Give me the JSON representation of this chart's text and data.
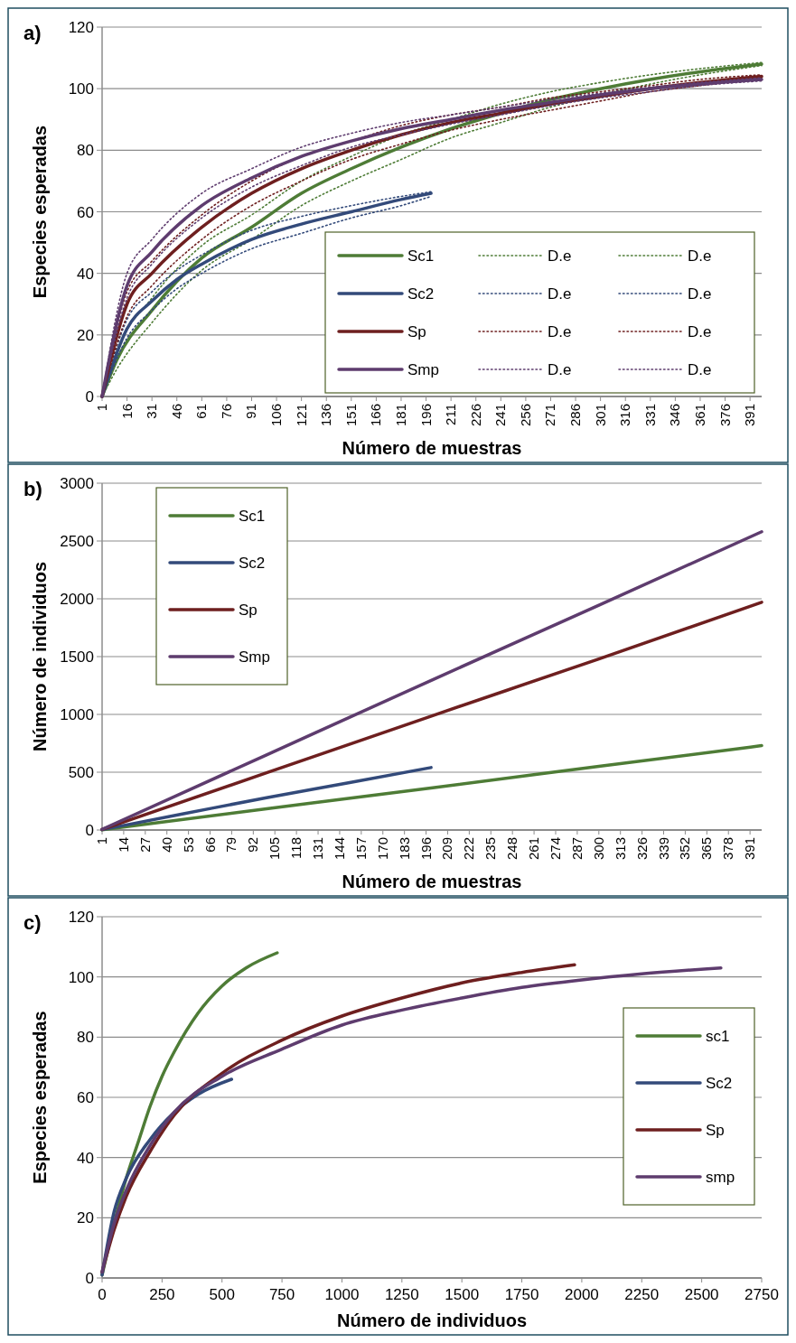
{
  "chart_data": [
    {
      "type": "line",
      "xlabel": "Número de muestras",
      "ylabel": "Especies esperadas",
      "annotations": [
        "a)"
      ],
      "xlim": [
        1,
        398
      ],
      "xticks": [
        1,
        16,
        31,
        46,
        61,
        76,
        91,
        106,
        121,
        136,
        151,
        166,
        181,
        196,
        211,
        226,
        241,
        256,
        271,
        286,
        301,
        316,
        331,
        346,
        361,
        376,
        391
      ],
      "ylim": [
        0,
        120
      ],
      "yticks": [
        0,
        20,
        40,
        60,
        80,
        100,
        120
      ],
      "grid": "y",
      "legend": "bottom right",
      "series": [
        {
          "name": "Sc1",
          "color": "#4e7c36",
          "line_style": "solid",
          "x": [
            1,
            10,
            31,
            61,
            91,
            121,
            151,
            181,
            211,
            241,
            271,
            301,
            331,
            361,
            398
          ],
          "values": [
            0,
            12,
            28,
            45,
            55,
            66,
            74,
            81,
            87,
            92,
            96.5,
            100,
            103,
            105.5,
            108
          ]
        },
        {
          "name": "D.e",
          "color": "#4e7c36",
          "line_style": "dotted",
          "x": [
            1,
            10,
            31,
            61,
            91,
            121,
            151,
            181,
            211,
            241,
            271,
            301,
            331,
            361,
            398
          ],
          "values": [
            0,
            9,
            24,
            41,
            51,
            62,
            70,
            77,
            84,
            89,
            94,
            98,
            101.5,
            104.5,
            107.5
          ]
        },
        {
          "name": "D.e",
          "color": "#4e7c36",
          "line_style": "dotted",
          "x": [
            1,
            10,
            31,
            61,
            91,
            121,
            151,
            181,
            211,
            241,
            271,
            301,
            331,
            361,
            398
          ],
          "values": [
            0,
            15,
            32,
            49,
            59,
            70,
            78,
            85,
            90,
            95,
            99,
            102,
            104.5,
            106.5,
            108.5
          ]
        },
        {
          "name": "Sc2",
          "color": "#334a7a",
          "line_style": "solid",
          "x": [
            1,
            16,
            31,
            46,
            61,
            91,
            121,
            151,
            181,
            199
          ],
          "values": [
            0,
            22,
            31,
            38,
            43,
            51,
            56,
            60,
            64,
            66
          ]
        },
        {
          "name": "D.e",
          "color": "#334a7a",
          "line_style": "dotted",
          "x": [
            1,
            16,
            31,
            46,
            61,
            91,
            121,
            151,
            181,
            199
          ],
          "values": [
            0,
            19,
            28,
            35,
            40,
            48,
            53,
            58,
            62,
            65
          ]
        },
        {
          "name": "D.e",
          "color": "#334a7a",
          "line_style": "dotted",
          "x": [
            1,
            16,
            31,
            46,
            61,
            91,
            121,
            151,
            181,
            199
          ],
          "values": [
            0,
            25,
            34,
            41,
            46,
            54,
            58.5,
            62,
            65,
            66.5
          ]
        },
        {
          "name": "Sp",
          "color": "#6e1f1f",
          "line_style": "solid",
          "x": [
            1,
            16,
            31,
            61,
            91,
            121,
            151,
            181,
            211,
            241,
            271,
            301,
            331,
            361,
            398
          ],
          "values": [
            0,
            30,
            40,
            55,
            66,
            74,
            80,
            85,
            89,
            92,
            95,
            97.5,
            100,
            102,
            104
          ]
        },
        {
          "name": "D.e",
          "color": "#6e1f1f",
          "line_style": "dotted",
          "x": [
            1,
            16,
            31,
            61,
            91,
            121,
            151,
            181,
            211,
            241,
            271,
            301,
            331,
            361,
            398
          ],
          "values": [
            0,
            26,
            36,
            51,
            62,
            70,
            77,
            82,
            86.5,
            90,
            93,
            96,
            99,
            101,
            103.5
          ]
        },
        {
          "name": "D.e",
          "color": "#6e1f1f",
          "line_style": "dotted",
          "x": [
            1,
            16,
            31,
            61,
            91,
            121,
            151,
            181,
            211,
            241,
            271,
            301,
            331,
            361,
            398
          ],
          "values": [
            0,
            34,
            44,
            59,
            70,
            78,
            83,
            88,
            91.5,
            94,
            97,
            99,
            101,
            103,
            104.5
          ]
        },
        {
          "name": "Smp",
          "color": "#5e3c6e",
          "line_style": "solid",
          "x": [
            1,
            16,
            31,
            61,
            91,
            121,
            151,
            181,
            211,
            241,
            271,
            301,
            331,
            361,
            398
          ],
          "values": [
            0,
            36,
            47,
            62,
            71,
            78,
            83,
            87,
            90,
            93,
            95.5,
            98,
            100,
            101.5,
            103
          ]
        },
        {
          "name": "D.e",
          "color": "#5e3c6e",
          "line_style": "dotted",
          "x": [
            1,
            16,
            31,
            61,
            91,
            121,
            151,
            181,
            211,
            241,
            271,
            301,
            331,
            361,
            398
          ],
          "values": [
            0,
            32,
            43,
            58,
            68,
            75,
            81,
            85,
            88.5,
            91.5,
            94.5,
            97,
            99,
            101,
            102.5
          ]
        },
        {
          "name": "D.e",
          "color": "#5e3c6e",
          "line_style": "dotted",
          "x": [
            1,
            16,
            31,
            61,
            91,
            121,
            151,
            181,
            211,
            241,
            271,
            301,
            331,
            361,
            398
          ],
          "values": [
            0,
            40,
            51,
            66,
            74,
            81,
            85.5,
            89,
            91.5,
            94,
            96.5,
            98.5,
            100.5,
            102,
            103.5
          ]
        }
      ]
    },
    {
      "type": "line",
      "xlabel": "Número de muestras",
      "ylabel": "Número de individuos",
      "annotations": [
        "b)"
      ],
      "xlim": [
        1,
        398
      ],
      "xticks": [
        1,
        14,
        27,
        40,
        53,
        66,
        79,
        92,
        105,
        118,
        131,
        144,
        157,
        170,
        183,
        196,
        209,
        222,
        235,
        248,
        261,
        274,
        287,
        300,
        313,
        326,
        339,
        352,
        365,
        378,
        391
      ],
      "ylim": [
        0,
        3000
      ],
      "yticks": [
        0,
        500,
        1000,
        1500,
        2000,
        2500,
        3000
      ],
      "grid": "y",
      "legend": "top left",
      "series": [
        {
          "name": "Sc1",
          "color": "#4e7c36",
          "x": [
            1,
            100,
            200,
            300,
            398
          ],
          "values": [
            2,
            183,
            366,
            550,
            730
          ]
        },
        {
          "name": "Sc2",
          "color": "#334a7a",
          "x": [
            1,
            50,
            100,
            150,
            199
          ],
          "values": [
            3,
            140,
            280,
            410,
            540
          ]
        },
        {
          "name": "Sp",
          "color": "#6e1f1f",
          "x": [
            1,
            100,
            200,
            300,
            398
          ],
          "values": [
            5,
            495,
            990,
            1480,
            1970
          ]
        },
        {
          "name": "Smp",
          "color": "#5e3c6e",
          "x": [
            1,
            100,
            200,
            300,
            398
          ],
          "values": [
            6,
            650,
            1300,
            1945,
            2580
          ]
        }
      ]
    },
    {
      "type": "line",
      "xlabel": "Número de individuos",
      "ylabel": "Especies esperadas",
      "annotations": [
        "c)"
      ],
      "xlim": [
        0,
        2750
      ],
      "xticks": [
        0,
        250,
        500,
        750,
        1000,
        1250,
        1500,
        1750,
        2000,
        2250,
        2500,
        2750
      ],
      "ylim": [
        0,
        120
      ],
      "yticks": [
        0,
        20,
        40,
        60,
        80,
        100,
        120
      ],
      "grid": "y",
      "legend": "right",
      "series": [
        {
          "name": "sc1",
          "color": "#4e7c36",
          "x": [
            0,
            50,
            100,
            150,
            200,
            250,
            300,
            400,
            500,
            600,
            730
          ],
          "values": [
            1,
            18,
            33,
            45,
            57,
            67,
            75,
            88,
            97,
            103,
            108
          ]
        },
        {
          "name": "Sc2",
          "color": "#334a7a",
          "x": [
            0,
            50,
            100,
            200,
            300,
            400,
            540
          ],
          "values": [
            1,
            22,
            33,
            46,
            55,
            61,
            66
          ]
        },
        {
          "name": "Sp",
          "color": "#6e1f1f",
          "x": [
            0,
            50,
            100,
            200,
            300,
            500,
            750,
            1000,
            1250,
            1500,
            1750,
            1970
          ],
          "values": [
            2,
            16,
            27,
            42,
            54,
            68,
            79,
            87,
            93,
            98,
            101.5,
            104
          ]
        },
        {
          "name": "smp",
          "color": "#5e3c6e",
          "x": [
            0,
            50,
            100,
            200,
            300,
            500,
            750,
            1000,
            1250,
            1500,
            1750,
            2000,
            2250,
            2580
          ],
          "values": [
            2,
            18,
            29,
            44,
            55,
            67,
            76,
            84,
            89,
            93,
            96.5,
            99,
            101,
            103
          ]
        }
      ]
    }
  ]
}
